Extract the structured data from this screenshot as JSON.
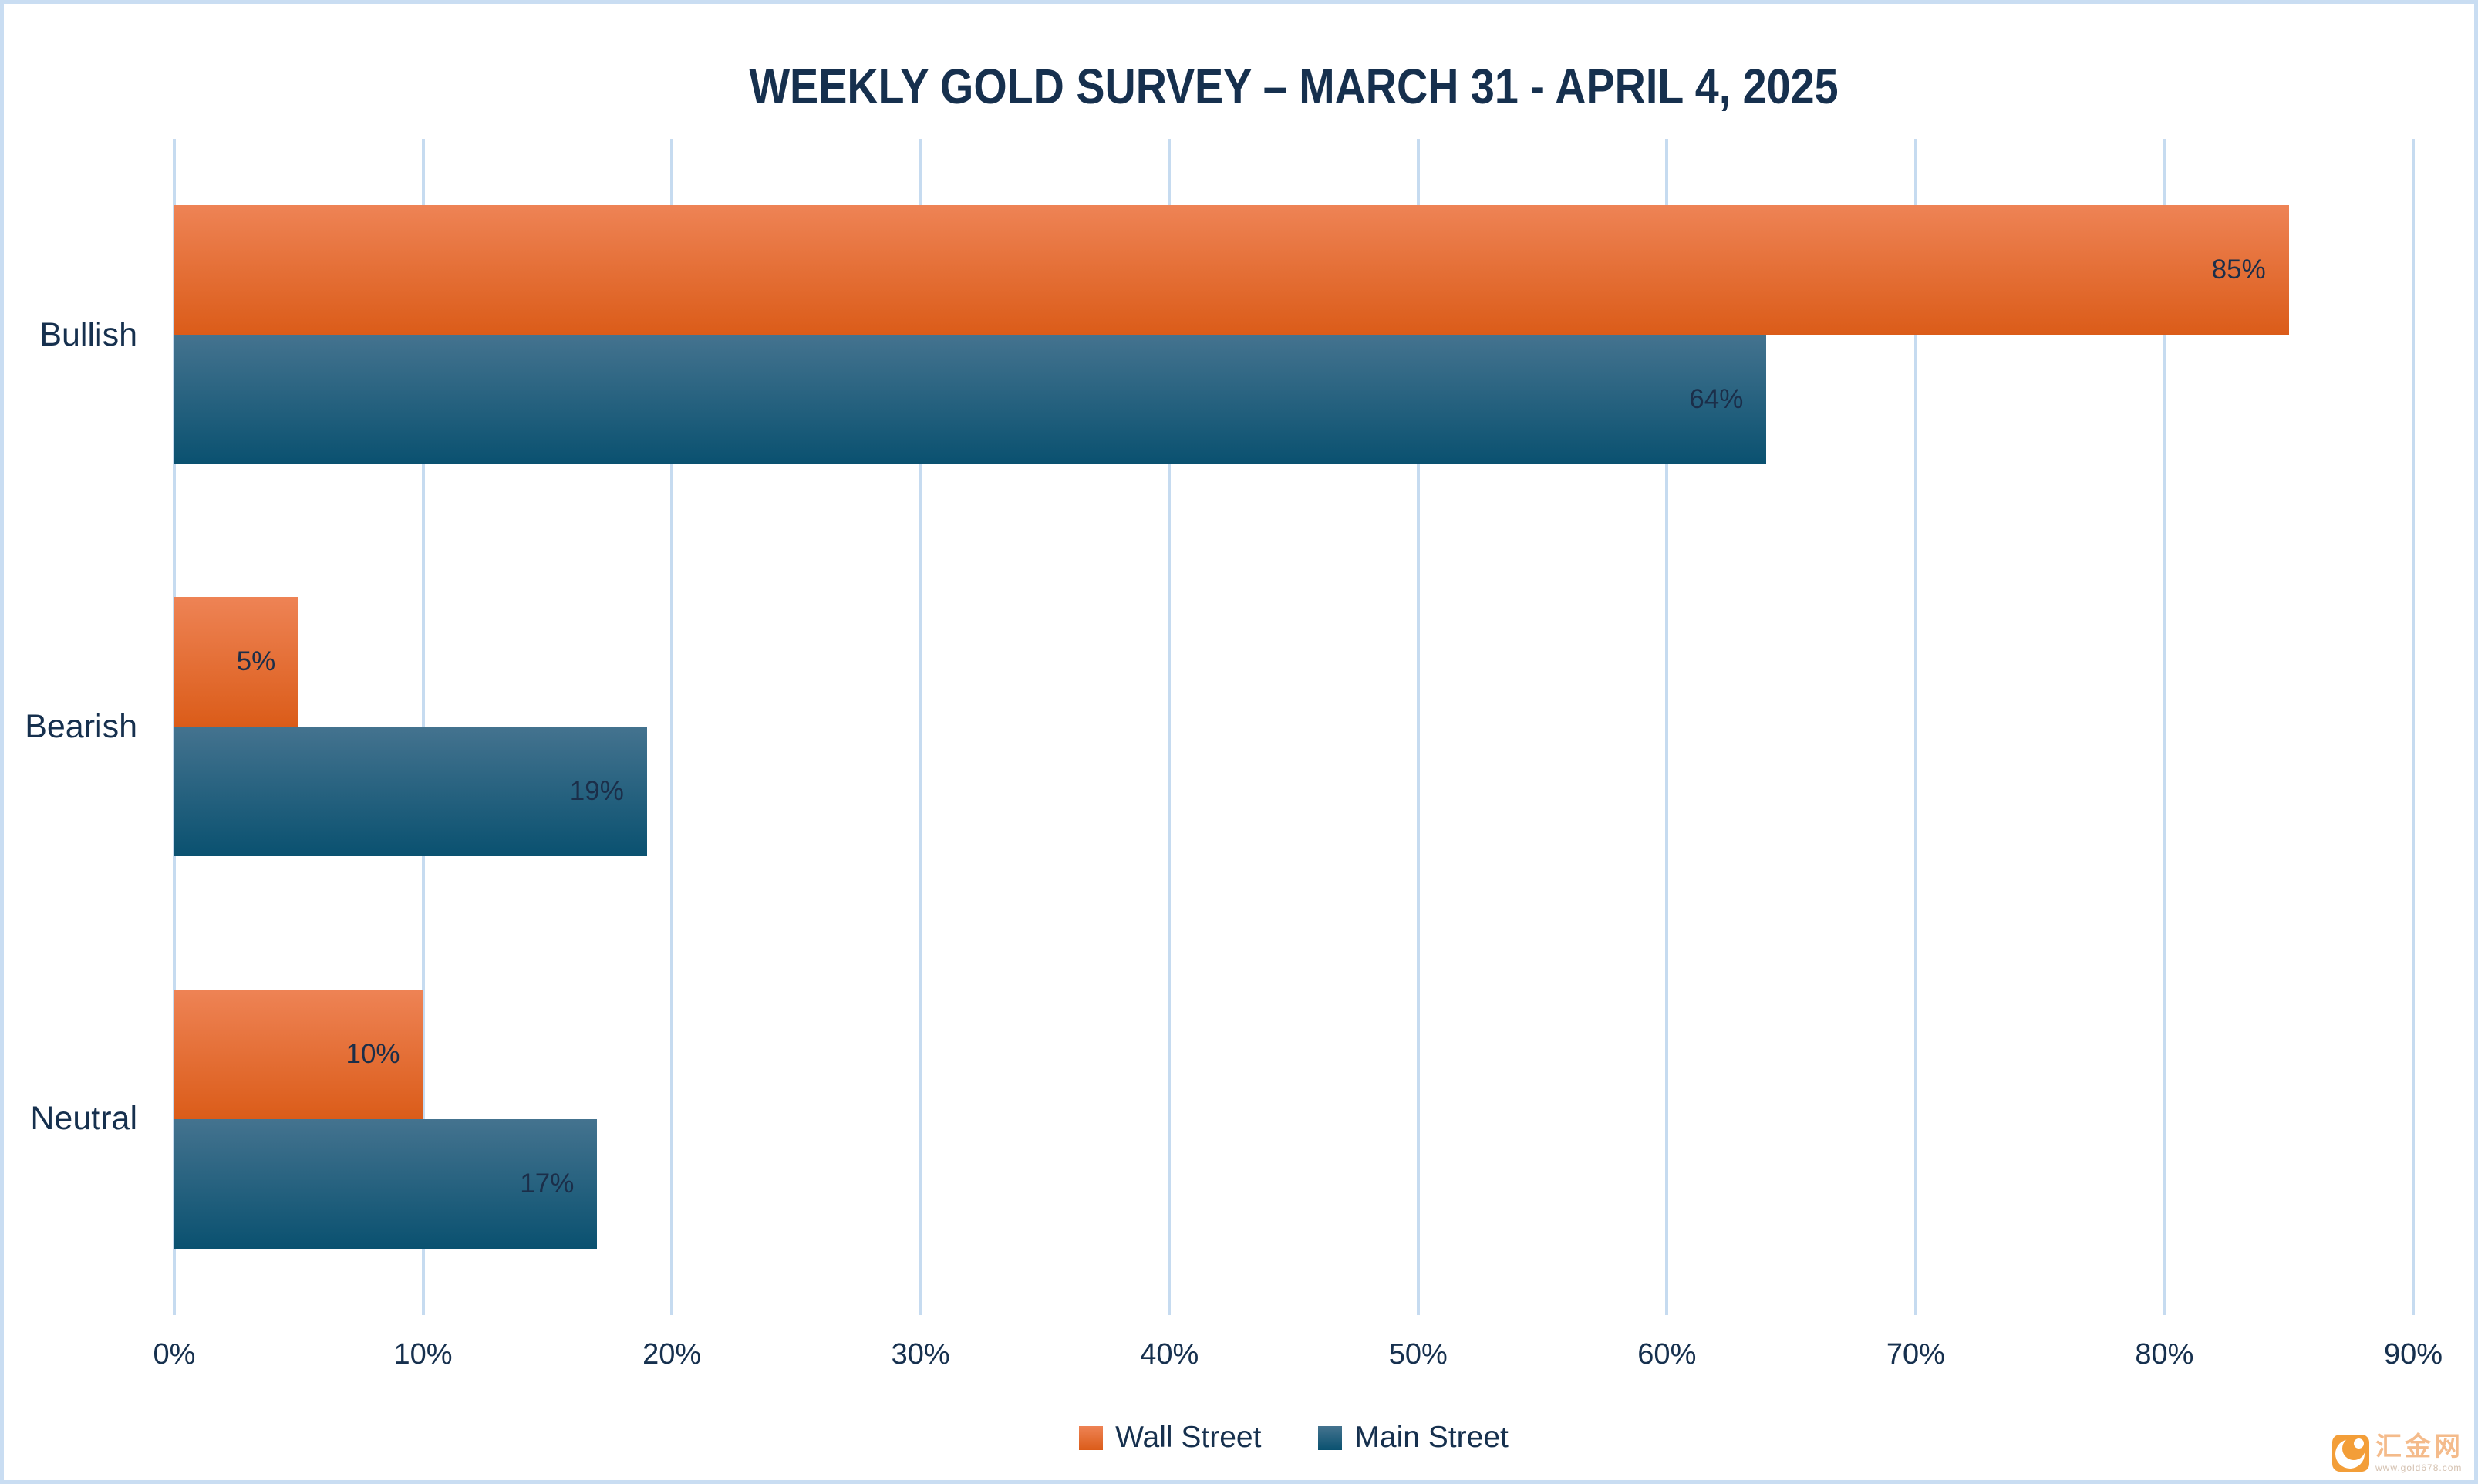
{
  "title": "WEEKLY GOLD SURVEY – MARCH 31 - APRIL 4, 2025",
  "chart_data": {
    "type": "bar",
    "orientation": "horizontal",
    "title": "WEEKLY GOLD SURVEY – MARCH 31 - APRIL 4, 2025",
    "categories": [
      "Bullish",
      "Bearish",
      "Neutral"
    ],
    "series": [
      {
        "name": "Wall Street",
        "values": [
          85,
          5,
          10
        ],
        "color_top": "#EE8355",
        "color_bottom": "#DB5C19"
      },
      {
        "name": "Main Street",
        "values": [
          64,
          19,
          17
        ],
        "color_top": "#44738F",
        "color_bottom": "#0A5170"
      }
    ],
    "value_suffix": "%",
    "data_labels": "inside-end",
    "xlim": [
      0,
      90
    ],
    "x_ticks": [
      "0%",
      "10%",
      "20%",
      "30%",
      "40%",
      "50%",
      "60%",
      "70%",
      "80%",
      "90%"
    ],
    "grid": true,
    "legend_position": "bottom"
  },
  "colors": {
    "background": "#FFFFFF",
    "frame_border": "#C9DDF2",
    "gridline": "#C6DBF0",
    "title_text": "#16304E",
    "axis_text": "#16304E",
    "data_label_text": "#1B2E49"
  },
  "watermark": {
    "brand_text": "汇金网",
    "site_url": "www.gold678.com"
  }
}
